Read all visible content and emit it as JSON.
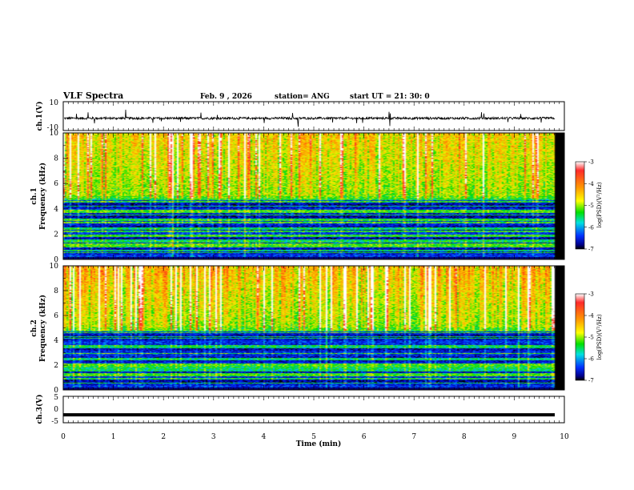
{
  "header": {
    "title": "VLF Spectra",
    "date": "Feb. 9 , 2026",
    "station": "station= ANG",
    "start_ut": "start UT =   21: 30: 0"
  },
  "chart_data": [
    {
      "type": "line",
      "panel": "ch1-waveform",
      "ylabel": "ch.1(V)",
      "ylim": [
        -10,
        10
      ],
      "yticks": [
        "10",
        "-10"
      ],
      "x_range": [
        0,
        10
      ],
      "baseline": -1.5
    },
    {
      "type": "heatmap",
      "panel": "ch1-spectrogram",
      "ylabel_channel": "ch.1",
      "ylabel": "Frequency (kHz)",
      "ylim": [
        0,
        10
      ],
      "yticks": [
        "0",
        "2",
        "4",
        "6",
        "8",
        "10"
      ],
      "x_range": [
        0,
        10
      ],
      "colorbar": {
        "label": "log(PSD)(V²/Hz)",
        "range": [
          -7,
          -3
        ],
        "ticks": [
          "-3",
          "-4",
          "-5",
          "-6",
          "-7"
        ]
      }
    },
    {
      "type": "heatmap",
      "panel": "ch2-spectrogram",
      "ylabel_channel": "ch.2",
      "ylabel": "Frequency (kHz)",
      "ylim": [
        0,
        10
      ],
      "yticks": [
        "0",
        "2",
        "4",
        "6",
        "8",
        "10"
      ],
      "x_range": [
        0,
        10
      ],
      "colorbar": {
        "label": "log(PSD)(V²/Hz)",
        "range": [
          -7,
          -3
        ],
        "ticks": [
          "-3",
          "-4",
          "-5",
          "-6",
          "-7"
        ]
      }
    },
    {
      "type": "line",
      "panel": "ch3-waveform",
      "ylabel": "ch.3(V)",
      "ylim": [
        -5,
        5
      ],
      "yticks": [
        "5",
        "0",
        "-5"
      ],
      "x_range": [
        0,
        10
      ],
      "baseline": -2,
      "xlabel": "Time (min)",
      "xticks": [
        "0",
        "1",
        "2",
        "3",
        "4",
        "5",
        "6",
        "7",
        "8",
        "9",
        "10"
      ]
    }
  ]
}
